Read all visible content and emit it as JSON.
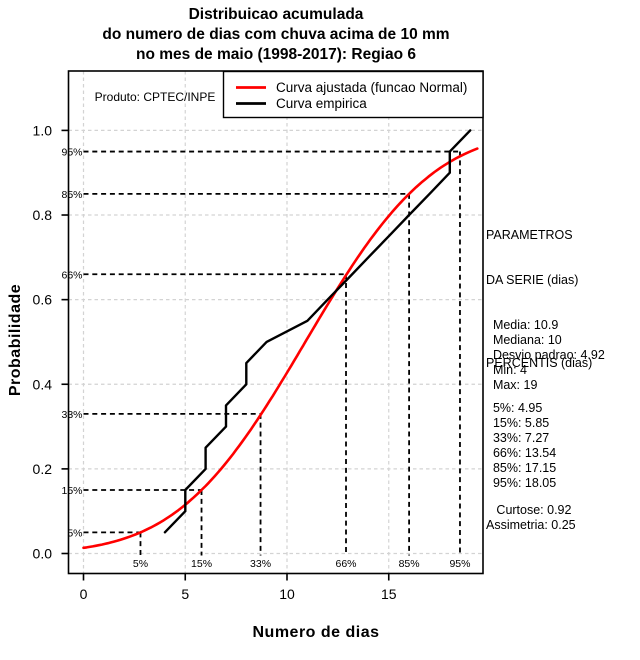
{
  "title": {
    "line1": "Distribuicao acumulada",
    "line2": "do numero de dias com chuva acima de 10 mm",
    "line3": "no mes de maio (1998-2017): Regiao 6"
  },
  "axes": {
    "x_label": "Numero de dias",
    "y_label": "Probabilidade"
  },
  "watermark": "Produto: CPTEC/INPE",
  "legend": {
    "items": [
      {
        "label": "Curva ajustada (funcao Normal)",
        "color": "#ff0000"
      },
      {
        "label": "Curva empirica",
        "color": "#000000"
      }
    ]
  },
  "side_panel": {
    "params_title1": "PARAMETROS",
    "params_title2": "DA SERIE (dias)",
    "params": [
      "  Media: 10.9",
      "  Mediana: 10",
      "  Desvio padrao: 4.92",
      "  Min: 4",
      "  Max: 19"
    ],
    "percentis_title": "PERCENTIS (dias)",
    "percentis": [
      "  5%: 4.95",
      "  15%: 5.85",
      "  33%: 7.27",
      "  66%: 13.54",
      "  85%: 17.15",
      "  95%: 18.05"
    ],
    "moments": [
      "   Curtose: 0.92",
      "Assimetria: 0.25"
    ]
  },
  "colors": {
    "fitted": "#ff0000",
    "empirical": "#000000",
    "grid": "#d3d3d3",
    "guide": "#000000",
    "box": "#000000"
  },
  "chart_data": {
    "type": "line",
    "title": "Distribuicao acumulada do numero de dias com chuva acima de 10 mm no mes de maio (1998-2017): Regiao 6",
    "xlabel": "Numero de dias",
    "ylabel": "Probabilidade",
    "xlim": [
      -0.75,
      19.65
    ],
    "ylim": [
      -0.045,
      1.14
    ],
    "grid": true,
    "legend_position": "top",
    "x_ticks": [
      0,
      5,
      10,
      15
    ],
    "x_tick_labels": [
      "0",
      "5",
      "10",
      "15"
    ],
    "y_ticks": [
      0.0,
      0.2,
      0.4,
      0.6,
      0.8,
      1.0
    ],
    "y_tick_labels": [
      "0.0",
      "0.2",
      "0.4",
      "0.6",
      "0.8",
      "1.0"
    ],
    "series": [
      {
        "name": "Curva ajustada (funcao Normal)",
        "color": "#ff0000",
        "model": "normal_cdf",
        "mean": 10.9,
        "sd": 4.92,
        "x_range": [
          0,
          19.35
        ]
      },
      {
        "name": "Curva empirica",
        "color": "#000000",
        "points": [
          [
            4,
            0.05
          ],
          [
            5,
            0.1
          ],
          [
            5,
            0.15
          ],
          [
            6,
            0.2
          ],
          [
            6,
            0.25
          ],
          [
            7,
            0.3
          ],
          [
            7,
            0.35
          ],
          [
            8,
            0.4
          ],
          [
            8,
            0.45
          ],
          [
            9,
            0.5
          ],
          [
            11,
            0.55
          ],
          [
            12,
            0.6
          ],
          [
            13,
            0.65
          ],
          [
            14,
            0.7
          ],
          [
            15,
            0.75
          ],
          [
            16,
            0.8
          ],
          [
            17,
            0.85
          ],
          [
            18,
            0.9
          ],
          [
            18,
            0.95
          ],
          [
            19,
            1.0
          ]
        ]
      }
    ],
    "percentile_guides": {
      "levels": [
        0.05,
        0.15,
        0.33,
        0.66,
        0.85,
        0.95
      ],
      "labels": [
        "5%",
        "15%",
        "33%",
        "66%",
        "85%",
        "95%"
      ],
      "days": [
        2.8,
        5.8,
        8.7,
        12.9,
        16.0,
        18.5
      ]
    },
    "statistics": {
      "media": 10.9,
      "mediana": 10,
      "desvio_padrao": 4.92,
      "min": 4,
      "max": 19,
      "percentis": {
        "5%": 4.95,
        "15%": 5.85,
        "33%": 7.27,
        "66%": 13.54,
        "85%": 17.15,
        "95%": 18.05
      },
      "curtose": 0.92,
      "assimetria": 0.25
    }
  }
}
